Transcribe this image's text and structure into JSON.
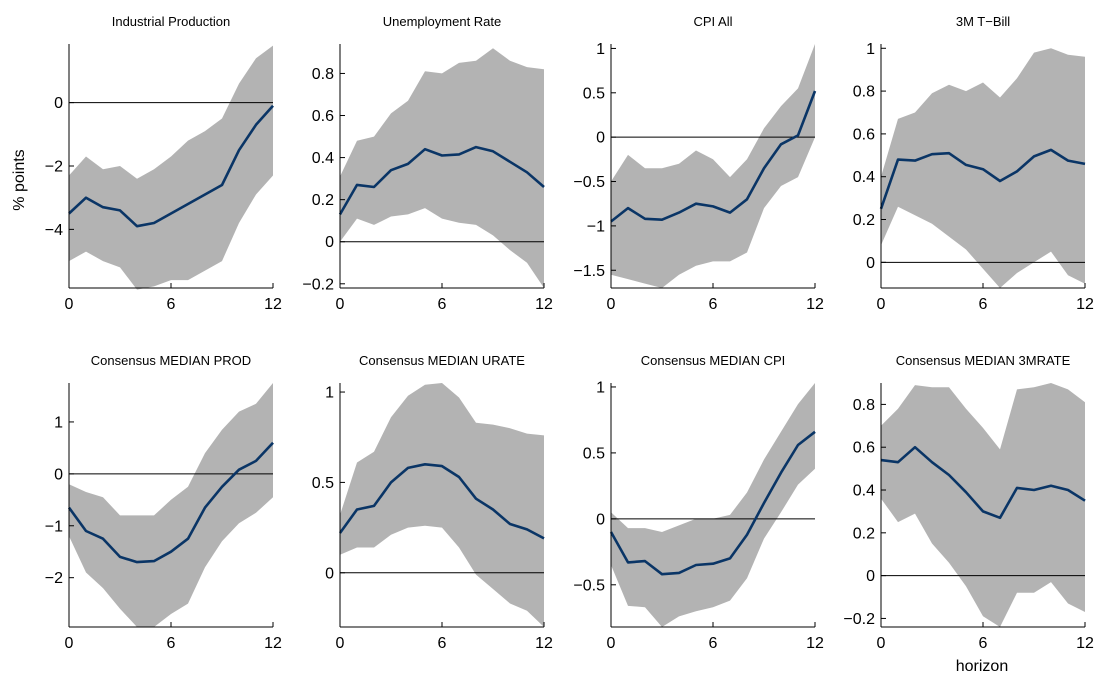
{
  "figure": {
    "ylabel": "% points",
    "xlabel": "horizon"
  },
  "colors": {
    "band": "#b3b3b3",
    "line": "#0a3566",
    "zero": "#000000"
  },
  "chart_data": [
    {
      "type": "area",
      "title": "Industrial Production",
      "x": [
        0,
        1,
        2,
        3,
        4,
        5,
        6,
        7,
        8,
        9,
        10,
        11,
        12
      ],
      "median": [
        -3.5,
        -3.0,
        -3.3,
        -3.4,
        -3.9,
        -3.8,
        -3.5,
        -3.2,
        -2.9,
        -2.6,
        -1.5,
        -0.7,
        -0.1
      ],
      "lower": [
        -5.0,
        -4.7,
        -5.0,
        -5.2,
        -5.9,
        -5.8,
        -5.6,
        -5.6,
        -5.3,
        -5.0,
        -3.8,
        -2.9,
        -2.3
      ],
      "upper": [
        -2.3,
        -1.7,
        -2.1,
        -2.0,
        -2.4,
        -2.1,
        -1.7,
        -1.2,
        -0.9,
        -0.5,
        0.6,
        1.4,
        1.8
      ],
      "xlim": [
        0,
        12
      ],
      "ylim": [
        -5.85,
        1.85
      ],
      "xticks": [
        0,
        6,
        12
      ],
      "yticks": [
        -4,
        -2,
        0
      ],
      "xticklabels": [
        "0",
        "6",
        "12"
      ],
      "yticklabels": [
        "−4",
        "−2",
        "0"
      ]
    },
    {
      "type": "area",
      "title": "Unemployment Rate",
      "x": [
        0,
        1,
        2,
        3,
        4,
        5,
        6,
        7,
        8,
        9,
        10,
        11,
        12
      ],
      "median": [
        0.13,
        0.27,
        0.26,
        0.34,
        0.37,
        0.44,
        0.41,
        0.415,
        0.45,
        0.43,
        0.38,
        0.33,
        0.26
      ],
      "lower": [
        0.0,
        0.11,
        0.08,
        0.12,
        0.13,
        0.16,
        0.11,
        0.09,
        0.08,
        0.03,
        -0.04,
        -0.1,
        -0.22
      ],
      "upper": [
        0.31,
        0.48,
        0.5,
        0.61,
        0.67,
        0.81,
        0.8,
        0.85,
        0.86,
        0.92,
        0.86,
        0.83,
        0.82
      ],
      "xlim": [
        0,
        12
      ],
      "ylim": [
        -0.22,
        0.94
      ],
      "xticks": [
        0,
        6,
        12
      ],
      "yticks": [
        -0.2,
        0,
        0.2,
        0.4,
        0.6,
        0.8
      ],
      "xticklabels": [
        "0",
        "6",
        "12"
      ],
      "yticklabels": [
        "−0.2",
        "0",
        "0.2",
        "0.4",
        "0.6",
        "0.8"
      ]
    },
    {
      "type": "area",
      "title": "CPI All",
      "x": [
        0,
        1,
        2,
        3,
        4,
        5,
        6,
        7,
        8,
        9,
        10,
        11,
        12
      ],
      "median": [
        -0.95,
        -0.8,
        -0.92,
        -0.93,
        -0.85,
        -0.75,
        -0.78,
        -0.85,
        -0.7,
        -0.35,
        -0.08,
        0.02,
        0.52
      ],
      "lower": [
        -1.55,
        -1.6,
        -1.65,
        -1.7,
        -1.55,
        -1.45,
        -1.4,
        -1.4,
        -1.3,
        -0.8,
        -0.55,
        -0.45,
        0.0
      ],
      "upper": [
        -0.5,
        -0.2,
        -0.35,
        -0.35,
        -0.3,
        -0.15,
        -0.25,
        -0.45,
        -0.25,
        0.1,
        0.35,
        0.55,
        1.05
      ],
      "xlim": [
        0,
        12
      ],
      "ylim": [
        -1.7,
        1.05
      ],
      "xticks": [
        0,
        6,
        12
      ],
      "yticks": [
        -1.5,
        -1,
        -0.5,
        0,
        0.5,
        1
      ],
      "xticklabels": [
        "0",
        "6",
        "12"
      ],
      "yticklabels": [
        "−1.5",
        "−1",
        "−0.5",
        "0",
        "0.5",
        "1"
      ]
    },
    {
      "type": "area",
      "title": "3M T−Bill",
      "x": [
        0,
        1,
        2,
        3,
        4,
        5,
        6,
        7,
        8,
        9,
        10,
        11,
        12
      ],
      "median": [
        0.25,
        0.48,
        0.475,
        0.505,
        0.51,
        0.455,
        0.435,
        0.38,
        0.425,
        0.495,
        0.525,
        0.475,
        0.46
      ],
      "lower": [
        0.08,
        0.26,
        0.22,
        0.18,
        0.12,
        0.06,
        -0.03,
        -0.12,
        -0.05,
        0.0,
        0.05,
        -0.06,
        -0.1
      ],
      "upper": [
        0.4,
        0.67,
        0.7,
        0.79,
        0.83,
        0.8,
        0.84,
        0.77,
        0.86,
        0.98,
        1.0,
        0.97,
        0.96
      ],
      "xlim": [
        0,
        12
      ],
      "ylim": [
        -0.12,
        1.02
      ],
      "xticks": [
        0,
        6,
        12
      ],
      "yticks": [
        0,
        0.2,
        0.4,
        0.6,
        0.8,
        1
      ],
      "xticklabels": [
        "0",
        "6",
        "12"
      ],
      "yticklabels": [
        "0",
        "0.2",
        "0.4",
        "0.6",
        "0.8",
        "1"
      ]
    },
    {
      "type": "area",
      "title": "Consensus MEDIAN PROD",
      "x": [
        0,
        1,
        2,
        3,
        4,
        5,
        6,
        7,
        8,
        9,
        10,
        11,
        12
      ],
      "median": [
        -0.65,
        -1.1,
        -1.25,
        -1.6,
        -1.7,
        -1.68,
        -1.5,
        -1.25,
        -0.65,
        -0.25,
        0.08,
        0.25,
        0.6
      ],
      "lower": [
        -1.2,
        -1.9,
        -2.2,
        -2.6,
        -2.95,
        -2.95,
        -2.7,
        -2.5,
        -1.8,
        -1.3,
        -0.95,
        -0.75,
        -0.45
      ],
      "upper": [
        -0.2,
        -0.35,
        -0.45,
        -0.8,
        -0.8,
        -0.8,
        -0.5,
        -0.25,
        0.4,
        0.85,
        1.2,
        1.35,
        1.75
      ],
      "xlim": [
        0,
        12
      ],
      "ylim": [
        -2.95,
        1.75
      ],
      "xticks": [
        0,
        6,
        12
      ],
      "yticks": [
        -2,
        -1,
        0,
        1
      ],
      "xticklabels": [
        "0",
        "6",
        "12"
      ],
      "yticklabels": [
        "−2",
        "−1",
        "0",
        "1"
      ]
    },
    {
      "type": "area",
      "title": "Consensus MEDIAN URATE",
      "x": [
        0,
        1,
        2,
        3,
        4,
        5,
        6,
        7,
        8,
        9,
        10,
        11,
        12
      ],
      "median": [
        0.22,
        0.35,
        0.37,
        0.5,
        0.58,
        0.6,
        0.59,
        0.53,
        0.41,
        0.35,
        0.27,
        0.24,
        0.19
      ],
      "lower": [
        0.1,
        0.14,
        0.14,
        0.21,
        0.25,
        0.26,
        0.25,
        0.14,
        -0.01,
        -0.09,
        -0.17,
        -0.21,
        -0.3
      ],
      "upper": [
        0.32,
        0.61,
        0.67,
        0.86,
        0.98,
        1.04,
        1.05,
        0.97,
        0.83,
        0.82,
        0.8,
        0.77,
        0.76
      ],
      "xlim": [
        0,
        12
      ],
      "ylim": [
        -0.3,
        1.05
      ],
      "xticks": [
        0,
        6,
        12
      ],
      "yticks": [
        0,
        0.5,
        1
      ],
      "xticklabels": [
        "0",
        "6",
        "12"
      ],
      "yticklabels": [
        "0",
        "0.5",
        "1"
      ]
    },
    {
      "type": "area",
      "title": "Consensus MEDIAN CPI",
      "x": [
        0,
        1,
        2,
        3,
        4,
        5,
        6,
        7,
        8,
        9,
        10,
        11,
        12
      ],
      "median": [
        -0.1,
        -0.33,
        -0.32,
        -0.42,
        -0.41,
        -0.35,
        -0.34,
        -0.3,
        -0.12,
        0.12,
        0.35,
        0.56,
        0.66
      ],
      "lower": [
        -0.35,
        -0.66,
        -0.67,
        -0.82,
        -0.74,
        -0.7,
        -0.67,
        -0.62,
        -0.45,
        -0.15,
        0.05,
        0.26,
        0.38
      ],
      "upper": [
        0.05,
        -0.07,
        -0.07,
        -0.1,
        -0.05,
        0.0,
        0.0,
        0.03,
        0.2,
        0.45,
        0.66,
        0.87,
        1.03
      ],
      "xlim": [
        0,
        12
      ],
      "ylim": [
        -0.82,
        1.03
      ],
      "xticks": [
        0,
        6,
        12
      ],
      "yticks": [
        -0.5,
        0,
        0.5,
        1
      ],
      "xticklabels": [
        "0",
        "6",
        "12"
      ],
      "yticklabels": [
        "−0.5",
        "0",
        "0.5",
        "1"
      ]
    },
    {
      "type": "area",
      "title": "Consensus MEDIAN 3MRATE",
      "x": [
        0,
        1,
        2,
        3,
        4,
        5,
        6,
        7,
        8,
        9,
        10,
        11,
        12
      ],
      "median": [
        0.54,
        0.53,
        0.6,
        0.53,
        0.47,
        0.39,
        0.3,
        0.27,
        0.41,
        0.4,
        0.42,
        0.4,
        0.35
      ],
      "lower": [
        0.36,
        0.25,
        0.29,
        0.15,
        0.06,
        -0.05,
        -0.19,
        -0.24,
        -0.08,
        -0.08,
        -0.03,
        -0.13,
        -0.17
      ],
      "upper": [
        0.7,
        0.78,
        0.89,
        0.88,
        0.88,
        0.78,
        0.69,
        0.59,
        0.87,
        0.88,
        0.9,
        0.87,
        0.81
      ],
      "xlim": [
        0,
        12
      ],
      "ylim": [
        -0.24,
        0.9
      ],
      "xticks": [
        0,
        6,
        12
      ],
      "yticks": [
        -0.2,
        0,
        0.2,
        0.4,
        0.6,
        0.8
      ],
      "xticklabels": [
        "0",
        "6",
        "12"
      ],
      "yticklabels": [
        "−0.2",
        "0",
        "0.2",
        "0.4",
        "0.6",
        "0.8"
      ]
    }
  ]
}
